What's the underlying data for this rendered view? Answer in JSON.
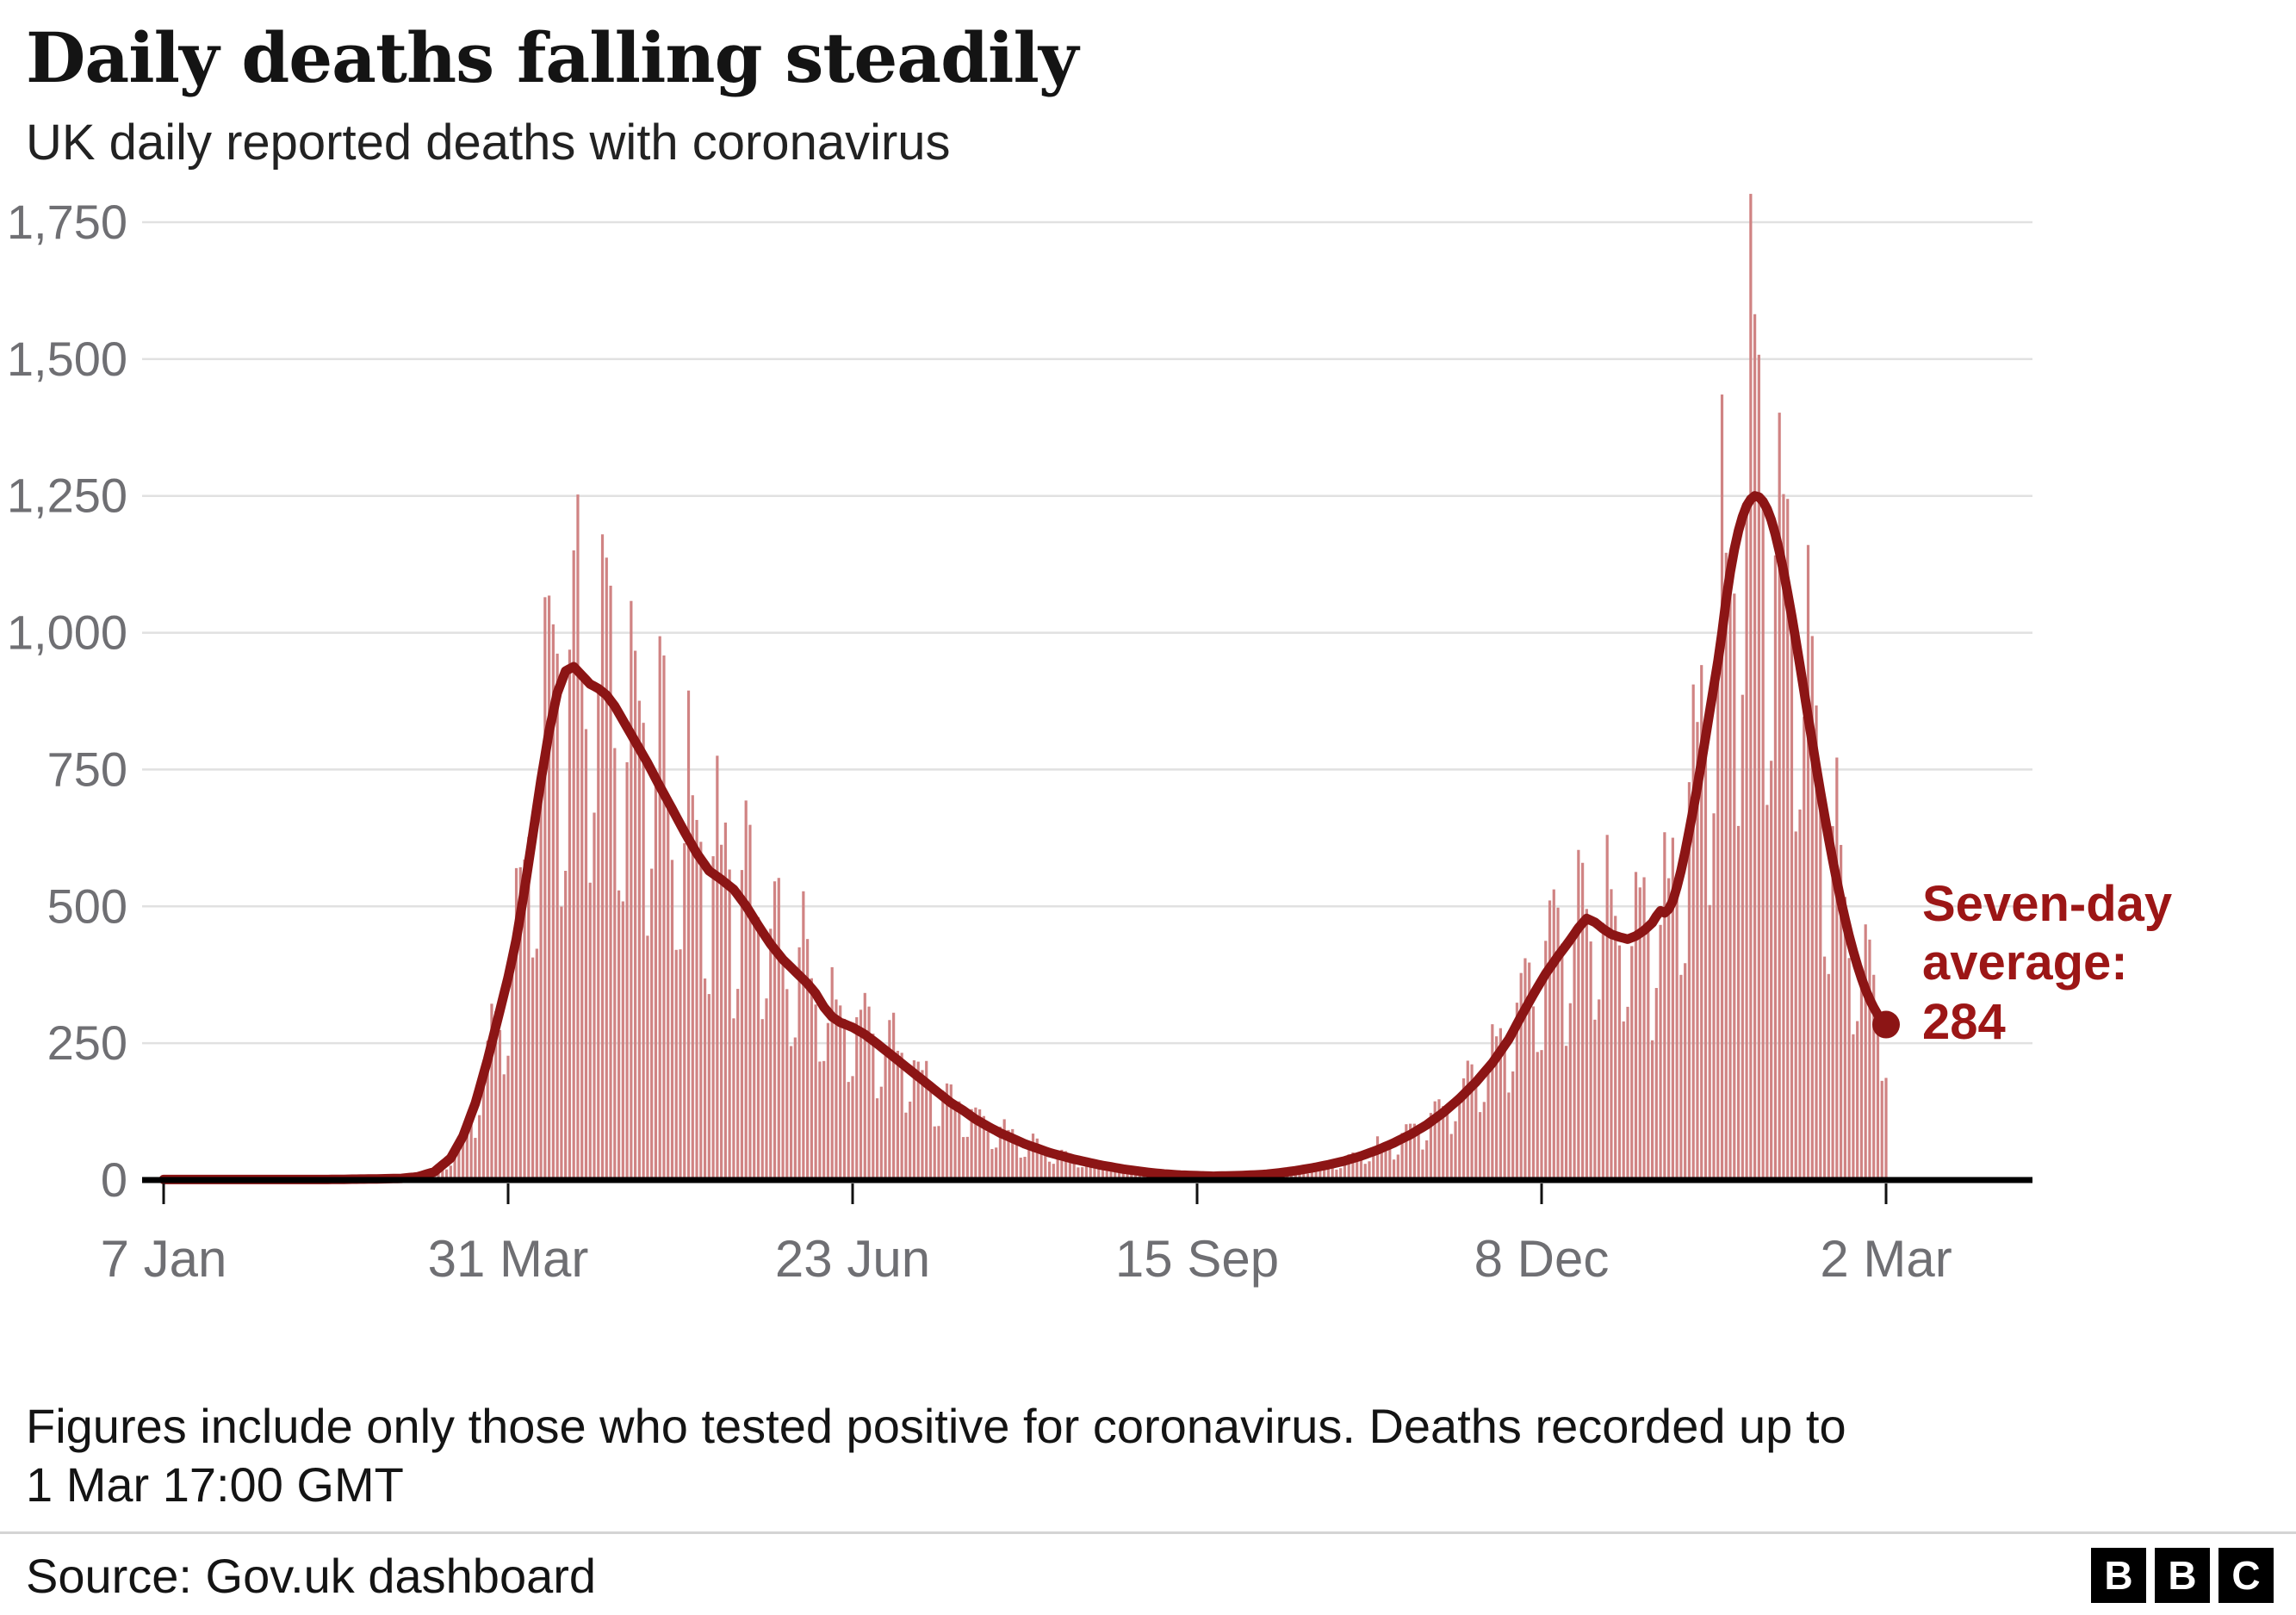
{
  "header": {
    "title": "Daily deaths falling steadily",
    "subtitle": "UK daily reported deaths with coronavirus"
  },
  "annotation": {
    "line1": "Seven-day",
    "line2": "average:",
    "value": "284"
  },
  "footnote": {
    "line1": "Figures include only those who tested positive for coronavirus. Deaths recorded up to",
    "line2": "1 Mar 17:00 GMT"
  },
  "footer": {
    "source": "Source: Gov.uk dashboard",
    "logo_letters": [
      "B",
      "B",
      "C"
    ]
  },
  "colors": {
    "bar": "#d08383",
    "line": "#8c1515",
    "annotation": "#9c1616",
    "axis_label": "#6f6f73",
    "grid": "#e1e1e1",
    "baseline": "#000000"
  },
  "chart_data": {
    "type": "bar",
    "subtype": "daily-bars-with-seven-day-average-line",
    "title": "Daily deaths falling steadily",
    "subtitle": "UK daily reported deaths with coronavirus",
    "grid": "horizontal",
    "x_axis": {
      "tick_labels": [
        "7 Jan",
        "31 Mar",
        "23 Jun",
        "15 Sep",
        "8 Dec",
        "2 Mar"
      ],
      "tick_days": [
        0,
        84,
        168,
        252,
        336,
        420
      ],
      "days_total": 420
    },
    "y_axis": {
      "ticks": [
        0,
        250,
        500,
        750,
        1000,
        1250,
        1500,
        1750
      ],
      "tick_labels": [
        "0",
        "250",
        "500",
        "750",
        "1,000",
        "1,250",
        "1,500",
        "1,750"
      ],
      "ylim": [
        0,
        1750
      ]
    },
    "series": [
      {
        "name": "Daily reported deaths",
        "type": "bar",
        "derived_from": "seven_day_average_keyframes",
        "weekday_factors": [
          0.68,
          1.04,
          1.3,
          1.22,
          1.12,
          0.98,
          0.6
        ],
        "noise_amplitude": 0.12,
        "first_wave_peak_daily": 1225,
        "second_wave_peak_daily": 1820
      },
      {
        "name": "Seven-day average",
        "type": "line",
        "end_value": 284,
        "first_wave_peak": 938,
        "second_wave_peak": 1250,
        "keyframes": [
          [
            0,
            1
          ],
          [
            40,
            1
          ],
          [
            52,
            2
          ],
          [
            58,
            3
          ],
          [
            62,
            6
          ],
          [
            66,
            15
          ],
          [
            70,
            40
          ],
          [
            73,
            80
          ],
          [
            76,
            140
          ],
          [
            79,
            220
          ],
          [
            82,
            310
          ],
          [
            84,
            370
          ],
          [
            86,
            440
          ],
          [
            88,
            530
          ],
          [
            90,
            630
          ],
          [
            92,
            730
          ],
          [
            94,
            820
          ],
          [
            96,
            890
          ],
          [
            98,
            930
          ],
          [
            100,
            938
          ],
          [
            102,
            922
          ],
          [
            104,
            906
          ],
          [
            106,
            898
          ],
          [
            108,
            886
          ],
          [
            110,
            866
          ],
          [
            112,
            840
          ],
          [
            115,
            801
          ],
          [
            118,
            762
          ],
          [
            121,
            719
          ],
          [
            124,
            678
          ],
          [
            127,
            636
          ],
          [
            130,
            597
          ],
          [
            133,
            565
          ],
          [
            136,
            549
          ],
          [
            139,
            531
          ],
          [
            142,
            501
          ],
          [
            145,
            465
          ],
          [
            148,
            431
          ],
          [
            151,
            403
          ],
          [
            154,
            381
          ],
          [
            157,
            359
          ],
          [
            159,
            341
          ],
          [
            161,
            316
          ],
          [
            163,
            298
          ],
          [
            165,
            288
          ],
          [
            168,
            279
          ],
          [
            171,
            266
          ],
          [
            174,
            249
          ],
          [
            177,
            231
          ],
          [
            180,
            213
          ],
          [
            183,
            195
          ],
          [
            186,
            177
          ],
          [
            189,
            159
          ],
          [
            192,
            141
          ],
          [
            195,
            127
          ],
          [
            198,
            111
          ],
          [
            201,
            98
          ],
          [
            204,
            86
          ],
          [
            207,
            76
          ],
          [
            210,
            66
          ],
          [
            213,
            58
          ],
          [
            216,
            50
          ],
          [
            219,
            44
          ],
          [
            222,
            38
          ],
          [
            225,
            33
          ],
          [
            228,
            28
          ],
          [
            231,
            24
          ],
          [
            234,
            20
          ],
          [
            237,
            17
          ],
          [
            240,
            14
          ],
          [
            244,
            11
          ],
          [
            248,
            9
          ],
          [
            252,
            8
          ],
          [
            256,
            7
          ],
          [
            262,
            8
          ],
          [
            268,
            10
          ],
          [
            272,
            13
          ],
          [
            276,
            17
          ],
          [
            280,
            22
          ],
          [
            284,
            28
          ],
          [
            288,
            35
          ],
          [
            292,
            44
          ],
          [
            296,
            55
          ],
          [
            300,
            68
          ],
          [
            304,
            83
          ],
          [
            308,
            101
          ],
          [
            312,
            123
          ],
          [
            316,
            149
          ],
          [
            320,
            179
          ],
          [
            324,
            214
          ],
          [
            328,
            257
          ],
          [
            331,
            299
          ],
          [
            334,
            339
          ],
          [
            337,
            377
          ],
          [
            340,
            409
          ],
          [
            343,
            439
          ],
          [
            345,
            461
          ],
          [
            347,
            478
          ],
          [
            349,
            471
          ],
          [
            351,
            459
          ],
          [
            353,
            449
          ],
          [
            355,
            444
          ],
          [
            357,
            440
          ],
          [
            359,
            446
          ],
          [
            361,
            456
          ],
          [
            363,
            470
          ],
          [
            364,
            482
          ],
          [
            365,
            492
          ],
          [
            366,
            488
          ],
          [
            367,
            495
          ],
          [
            368,
            510
          ],
          [
            369,
            535
          ],
          [
            370,
            565
          ],
          [
            371,
            600
          ],
          [
            372,
            638
          ],
          [
            373,
            678
          ],
          [
            374,
            720
          ],
          [
            375,
            764
          ],
          [
            376,
            810
          ],
          [
            377,
            856
          ],
          [
            378,
            902
          ],
          [
            379,
            948
          ],
          [
            380,
            1000
          ],
          [
            381,
            1060
          ],
          [
            382,
            1110
          ],
          [
            383,
            1152
          ],
          [
            384,
            1186
          ],
          [
            385,
            1212
          ],
          [
            386,
            1232
          ],
          [
            387,
            1244
          ],
          [
            388,
            1250
          ],
          [
            389,
            1248
          ],
          [
            390,
            1240
          ],
          [
            391,
            1226
          ],
          [
            392,
            1206
          ],
          [
            393,
            1180
          ],
          [
            394,
            1148
          ],
          [
            395,
            1112
          ],
          [
            396,
            1072
          ],
          [
            397,
            1030
          ],
          [
            398,
            986
          ],
          [
            399,
            940
          ],
          [
            400,
            893
          ],
          [
            401,
            846
          ],
          [
            402,
            800
          ],
          [
            403,
            754
          ],
          [
            404,
            709
          ],
          [
            405,
            666
          ],
          [
            406,
            624
          ],
          [
            407,
            584
          ],
          [
            408,
            546
          ],
          [
            409,
            510
          ],
          [
            410,
            477
          ],
          [
            411,
            446
          ],
          [
            412,
            418
          ],
          [
            413,
            392
          ],
          [
            414,
            369
          ],
          [
            415,
            348
          ],
          [
            416,
            330
          ],
          [
            417,
            315
          ],
          [
            418,
            302
          ],
          [
            419,
            292
          ],
          [
            420,
            284
          ]
        ]
      }
    ],
    "annotation": {
      "text": "Seven-day average: 284",
      "position": "right-of-line-end"
    }
  }
}
